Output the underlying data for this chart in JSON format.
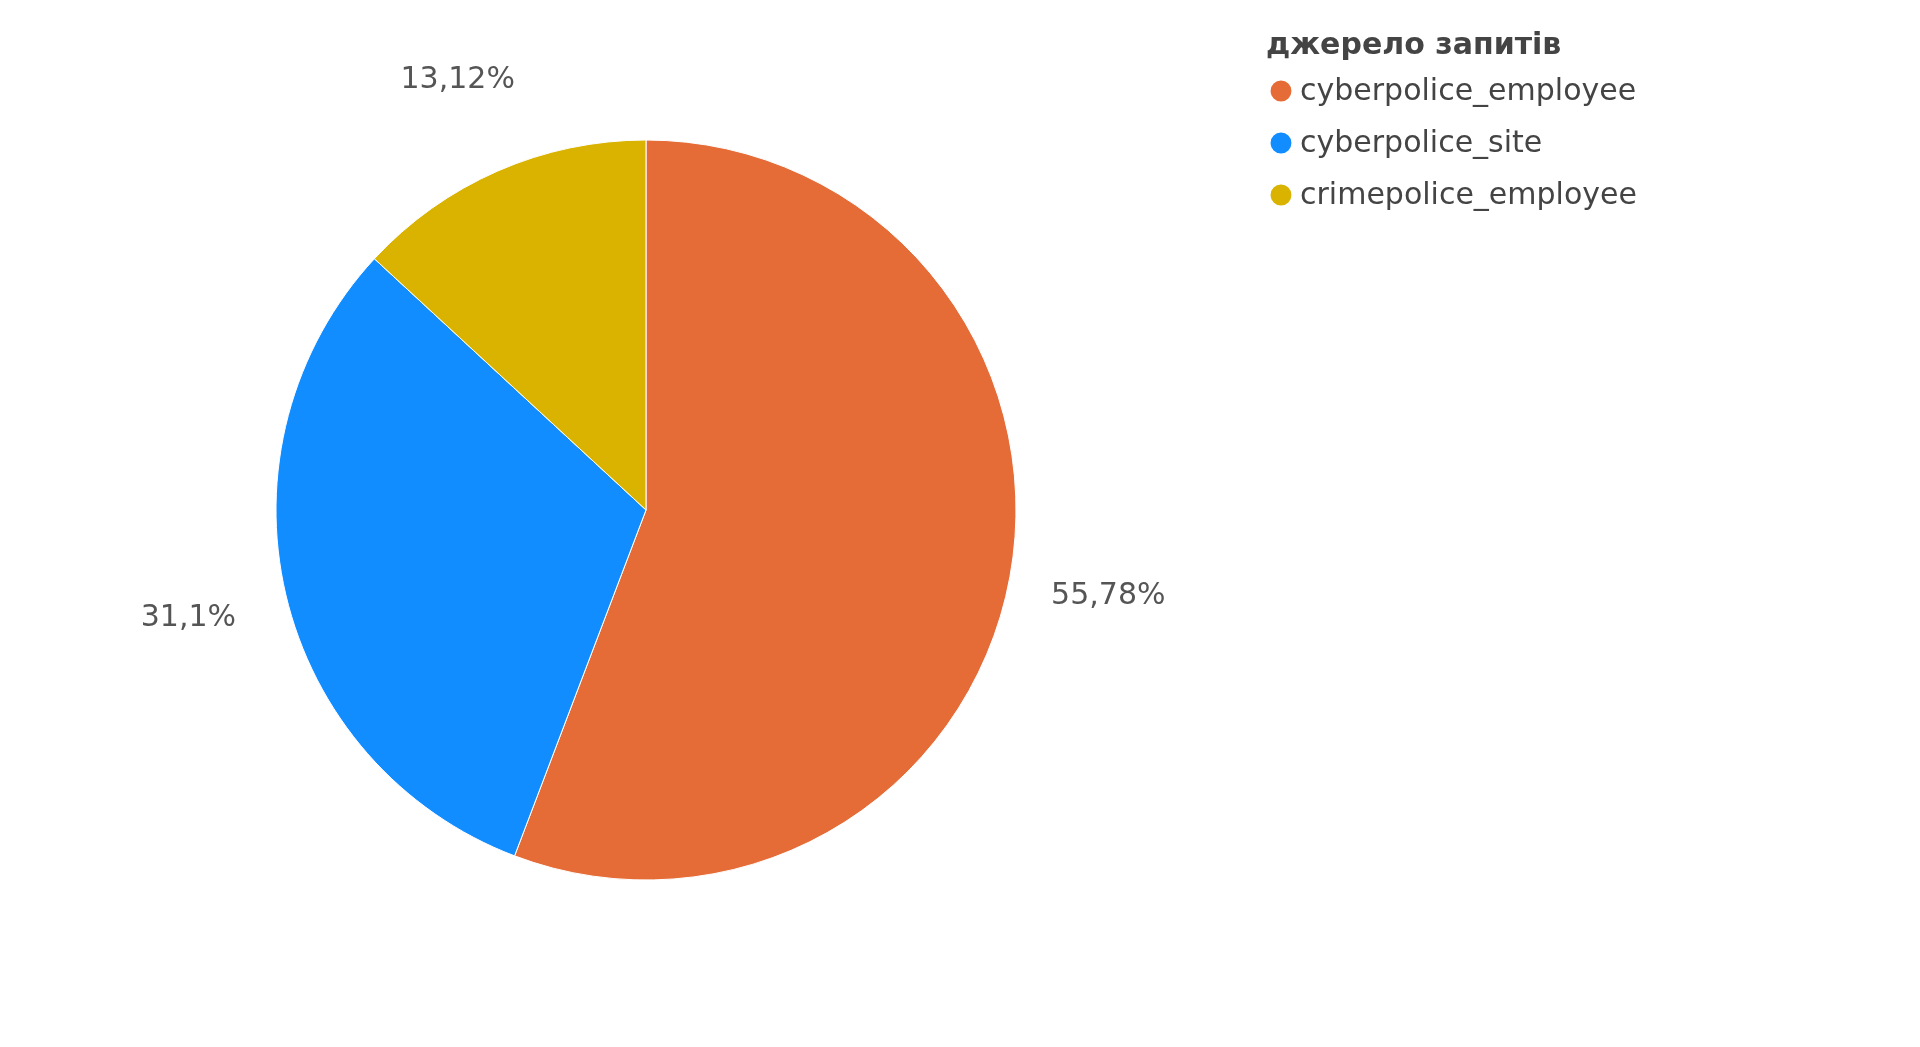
{
  "chart_data": {
    "type": "pie",
    "legend_title": "джерело запитів",
    "categories": [
      "cyberpolice_employee",
      "cyberpolice_site",
      "crimepolice_employee"
    ],
    "values": [
      55.78,
      31.1,
      13.12
    ],
    "colors": [
      "#e66c37",
      "#118dff",
      "#d9b300"
    ],
    "value_labels": [
      "55,78%",
      "31,1%",
      "13,12%"
    ],
    "legend": "right"
  }
}
